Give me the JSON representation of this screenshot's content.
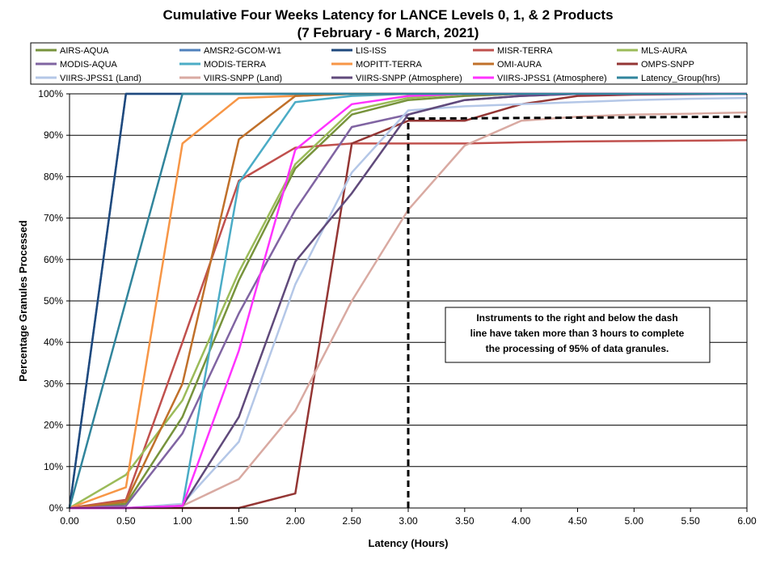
{
  "chart_data": {
    "type": "line",
    "title": "Cumulative Four Weeks Latency  for LANCE Levels 0, 1, & 2 Products",
    "subtitle": "(7  February   -  6  March,  2021)",
    "xlabel": "Latency (Hours)",
    "ylabel": "Percentage Granules Processed",
    "xlim": [
      0,
      6
    ],
    "ylim": [
      0,
      100
    ],
    "x_ticks": [
      "0.00",
      "0.50",
      "1.00",
      "1.50",
      "2.00",
      "2.50",
      "3.00",
      "3.50",
      "4.00",
      "4.50",
      "5.00",
      "5.50",
      "6.00"
    ],
    "y_ticks": [
      "0%",
      "10%",
      "20%",
      "30%",
      "40%",
      "50%",
      "60%",
      "70%",
      "80%",
      "90%",
      "100%"
    ],
    "grid": "horizontal",
    "legend_position": "top",
    "x": [
      0,
      0.5,
      1,
      1.5,
      2,
      2.5,
      3,
      3.5,
      4,
      4.5,
      5,
      5.5,
      6
    ],
    "series": [
      {
        "name": "AIRS-AQUA",
        "color": "#77933c",
        "values": [
          0,
          1,
          22,
          55,
          82,
          95,
          98.5,
          99.5,
          100,
          100,
          100,
          100,
          100
        ]
      },
      {
        "name": "AMSR2-GCOM-W1",
        "color": "#4f81bd",
        "values": [
          0,
          100,
          100,
          100,
          100,
          100,
          100,
          100,
          100,
          100,
          100,
          100,
          100
        ]
      },
      {
        "name": "LIS-ISS",
        "color": "#1f497d",
        "values": [
          0,
          100,
          100,
          100,
          100,
          100,
          100,
          100,
          100,
          100,
          100,
          100,
          100
        ]
      },
      {
        "name": "MISR-TERRA",
        "color": "#c0504d",
        "values": [
          0,
          2,
          40,
          79,
          87,
          88,
          88,
          88,
          88.3,
          88.5,
          88.6,
          88.7,
          88.8
        ]
      },
      {
        "name": "MLS-AURA",
        "color": "#9bbb59",
        "values": [
          0,
          8,
          26,
          57,
          83,
          96,
          99,
          100,
          100,
          100,
          100,
          100,
          100
        ]
      },
      {
        "name": "MODIS-AQUA",
        "color": "#8064a2",
        "values": [
          0,
          0.5,
          18,
          47,
          72,
          92,
          95,
          98.5,
          99.5,
          100,
          100,
          100,
          100
        ]
      },
      {
        "name": "MODIS-TERRA",
        "color": "#4bacc6",
        "values": [
          0,
          0,
          0.5,
          78.5,
          98,
          99.5,
          100,
          100,
          100,
          100,
          100,
          100,
          100
        ]
      },
      {
        "name": "MOPITT-TERRA",
        "color": "#f79646",
        "values": [
          0,
          5,
          88,
          99,
          99.5,
          100,
          100,
          100,
          100,
          100,
          100,
          100,
          100
        ]
      },
      {
        "name": "OMI-AURA",
        "color": "#c0702a",
        "values": [
          0,
          1.5,
          30,
          89,
          99.5,
          100,
          100,
          100,
          100,
          100,
          100,
          100,
          100
        ]
      },
      {
        "name": "OMPS-SNPP",
        "color": "#943634",
        "values": [
          0,
          0,
          0,
          0,
          3.5,
          88,
          93.5,
          93.5,
          97.5,
          99.5,
          99.8,
          99.9,
          100
        ]
      },
      {
        "name": "VIIRS-JPSS1 (Land)",
        "color": "#b4c7e7",
        "values": [
          0,
          0,
          1,
          16,
          54,
          81,
          96,
          97,
          97.5,
          98,
          98.5,
          98.8,
          99
        ]
      },
      {
        "name": "VIIRS-SNPP (Land)",
        "color": "#d9aaa2",
        "values": [
          0,
          0,
          0.5,
          7,
          23.5,
          50,
          72,
          87.5,
          93.5,
          94.5,
          95,
          95.2,
          95.5
        ]
      },
      {
        "name": "VIIRS-SNPP (Atmosphere)",
        "color": "#604a7b",
        "values": [
          0,
          0,
          0.5,
          22,
          59.5,
          76,
          95,
          98.5,
          99.5,
          100,
          100,
          100,
          100
        ]
      },
      {
        "name": "VIIRS-JPSS1 (Atmosphere)",
        "color": "#ff33ff",
        "values": [
          0,
          0,
          0.5,
          38,
          86.5,
          97.5,
          99.5,
          100,
          100,
          100,
          100,
          100,
          100
        ]
      },
      {
        "name": "Latency_Group(hrs)",
        "color": "#31859c",
        "values": [
          0,
          50,
          100,
          100,
          100,
          100,
          100,
          100,
          100,
          100,
          100,
          100,
          100
        ]
      }
    ],
    "threshold_line": {
      "x": [
        3.0,
        3.0,
        6.0
      ],
      "y": [
        0,
        94,
        94.5
      ]
    },
    "annotation": {
      "lines": [
        "Instruments to the right and below the dash",
        "line have taken more than 3 hours to complete",
        "the processing of 95% of data granules."
      ]
    }
  }
}
